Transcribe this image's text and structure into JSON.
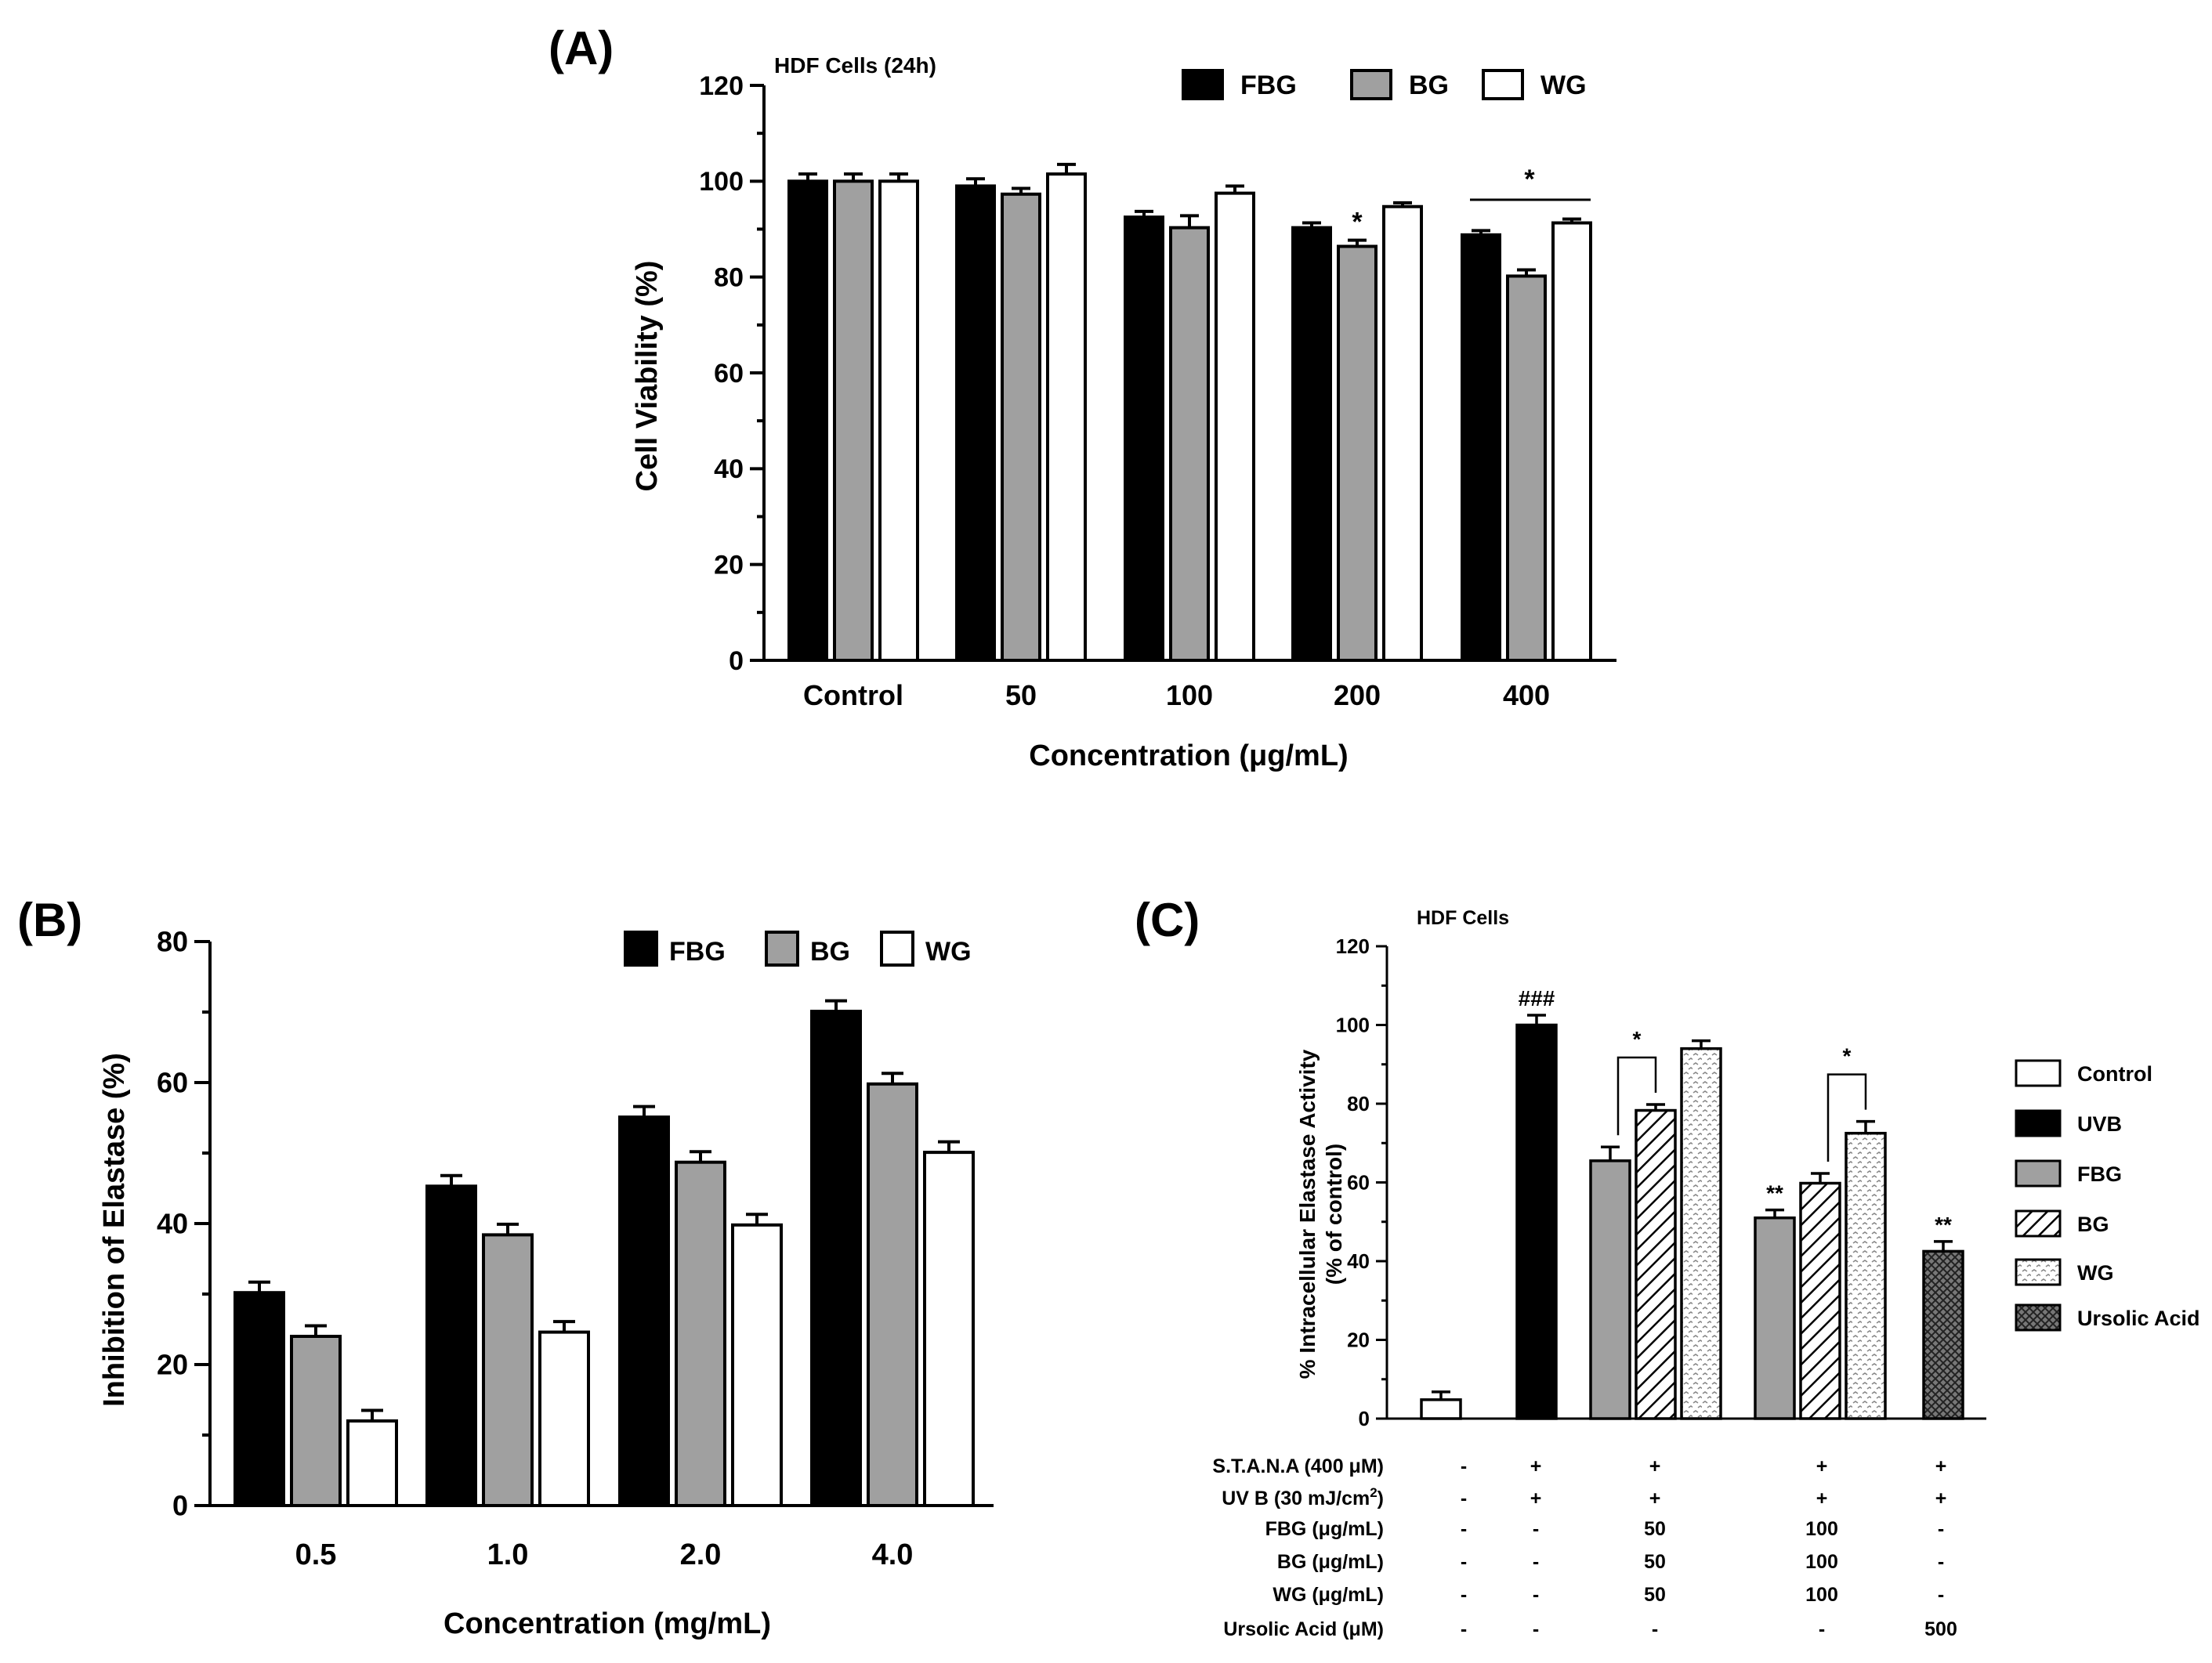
{
  "colors": {
    "fbg": "#000000",
    "bg": "#a0a0a0",
    "wg": "#ffffff",
    "ursolic": "#6e6e6e",
    "axis": "#000000"
  },
  "chart_data": [
    {
      "id": "A",
      "type": "bar",
      "panel_label": "(A)",
      "title": "HDF Cells (24h)",
      "xlabel": "Concentration (μg/mL)",
      "ylabel": "Cell Viability (%)",
      "ylim": [
        0,
        120
      ],
      "yticks": [
        0,
        20,
        40,
        60,
        80,
        100,
        120
      ],
      "categories": [
        "Control",
        "50",
        "100",
        "200",
        "400"
      ],
      "series": [
        {
          "name": "FBG",
          "values": [
            100,
            99,
            92.5,
            90.3,
            88.8
          ],
          "errors": [
            1.5,
            1.5,
            1.2,
            1.0,
            0.9
          ]
        },
        {
          "name": "BG",
          "values": [
            100,
            97.3,
            90.3,
            86.4,
            80.2
          ],
          "errors": [
            1.5,
            1.2,
            2.5,
            1.3,
            1.3
          ]
        },
        {
          "name": "WG",
          "values": [
            100,
            101.5,
            97.5,
            94.7,
            91.3
          ],
          "errors": [
            1.5,
            2.0,
            1.5,
            0.8,
            0.8
          ]
        }
      ],
      "annotations": [
        {
          "text": "*",
          "category": "200",
          "series": "BG"
        },
        {
          "text": "*",
          "category": "400",
          "series": "all"
        }
      ],
      "legend_position": "top-right"
    },
    {
      "id": "B",
      "type": "bar",
      "panel_label": "(B)",
      "xlabel": "Concentration (mg/mL)",
      "ylabel": "Inhibition of Elastase (%)",
      "ylim": [
        0,
        80
      ],
      "yticks": [
        0,
        20,
        40,
        60,
        80
      ],
      "categories": [
        "0.5",
        "1.0",
        "2.0",
        "4.0"
      ],
      "series": [
        {
          "name": "FBG",
          "values": [
            30.2,
            45.3,
            55.1,
            70.1
          ],
          "errors": [
            1.5,
            1.5,
            1.5,
            1.5
          ]
        },
        {
          "name": "BG",
          "values": [
            24.0,
            38.4,
            48.7,
            59.8
          ],
          "errors": [
            1.5,
            1.5,
            1.5,
            1.5
          ]
        },
        {
          "name": "WG",
          "values": [
            12.0,
            24.6,
            39.8,
            50.1
          ],
          "errors": [
            1.5,
            1.5,
            1.5,
            1.5
          ]
        }
      ],
      "legend_position": "top-right"
    },
    {
      "id": "C",
      "type": "bar",
      "panel_label": "(C)",
      "title": "HDF Cells",
      "ylabel_line1": "% Intracellular Elastase Activity",
      "ylabel_line2": "(% of control)",
      "ylim": [
        0,
        120
      ],
      "yticks": [
        0,
        20,
        40,
        60,
        80,
        100,
        120
      ],
      "bars": [
        {
          "name": "Control",
          "value": 4.8,
          "error": 2.0
        },
        {
          "name": "UVB",
          "value": 100,
          "error": 2.5
        },
        {
          "name": "FBG",
          "value": 65.5,
          "error": 3.5
        },
        {
          "name": "BG",
          "value": 78.3,
          "error": 1.5
        },
        {
          "name": "WG",
          "value": 94.0,
          "error": 2.0
        },
        {
          "name": "FBG",
          "value": 51.0,
          "error": 2.0
        },
        {
          "name": "BG",
          "value": 59.8,
          "error": 2.5
        },
        {
          "name": "WG",
          "value": 72.5,
          "error": 3.0
        },
        {
          "name": "Ursolic Acid",
          "value": 42.5,
          "error": 2.5
        }
      ],
      "annotations": [
        {
          "text": "###",
          "bar_index": 1
        },
        {
          "text": "*",
          "bracket": [
            2,
            3
          ]
        },
        {
          "text": "*",
          "bracket": [
            6,
            7
          ]
        },
        {
          "text": "**",
          "bar_index": 5
        },
        {
          "text": "**",
          "bar_index": 8
        }
      ],
      "legend": [
        "Control",
        "UVB",
        "FBG",
        "BG",
        "WG",
        "Ursolic Acid"
      ],
      "legend_position": "right",
      "conditions": {
        "labels": [
          "S.T.A.N.A (400 μM)",
          "UV B (30 mJ/cm",
          "FBG (μg/mL)",
          "BG (μg/mL)",
          "WG (μg/mL)",
          "Ursolic Acid (μM)"
        ],
        "uvb_sup": "2",
        "uvb_close": ")",
        "groups": [
          [
            "-",
            "-",
            "-",
            "-",
            "-",
            "-"
          ],
          [
            "+",
            "+",
            "-",
            "-",
            "-",
            "-"
          ],
          [
            "+",
            "+",
            "50",
            "50",
            "50",
            "-"
          ],
          [
            "+",
            "+",
            "100",
            "100",
            "100",
            "-"
          ],
          [
            "+",
            "+",
            "-",
            "-",
            "-",
            "500"
          ]
        ]
      }
    }
  ]
}
